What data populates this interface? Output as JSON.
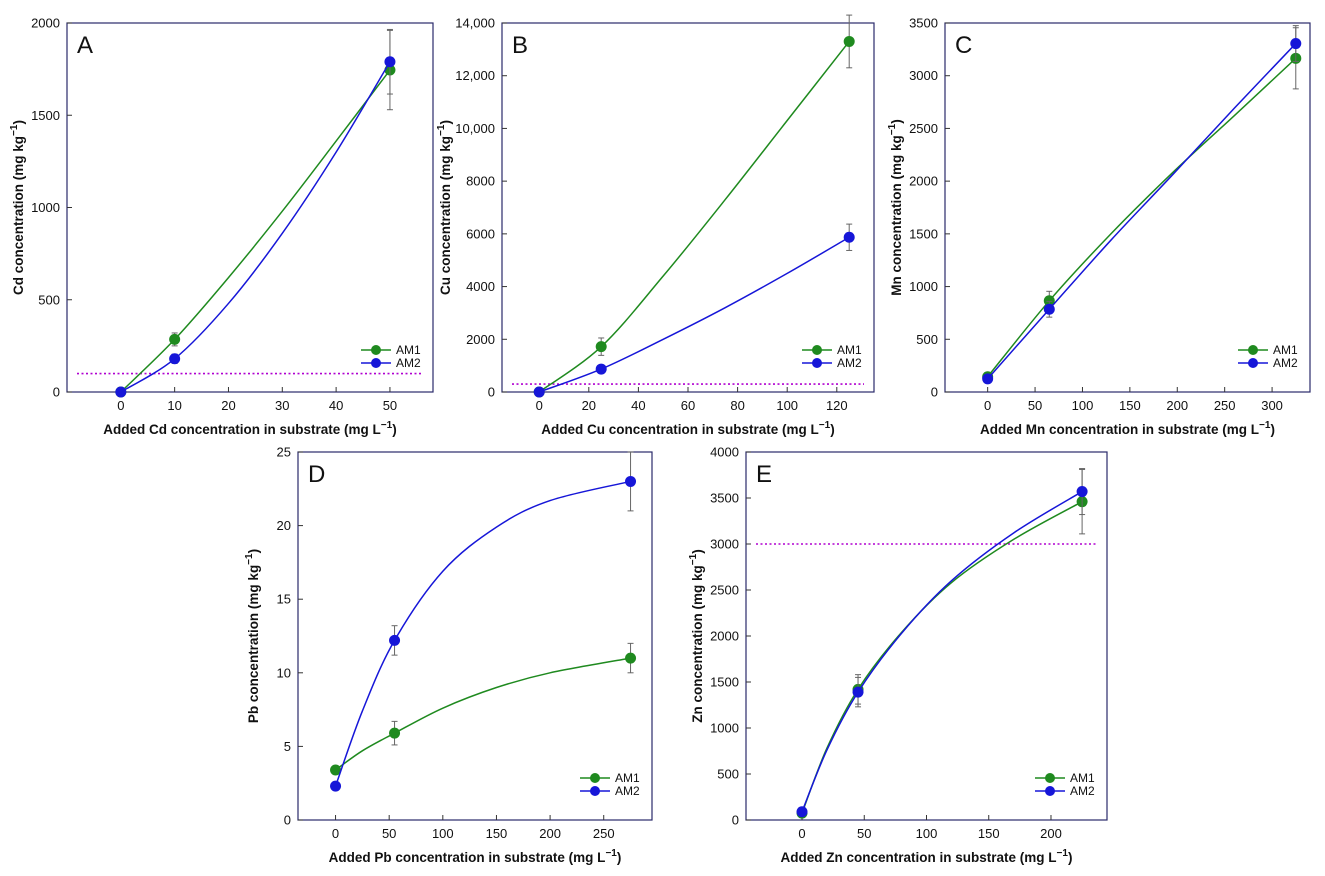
{
  "figure": {
    "description_free": true
  },
  "chart_data": [
    {
      "type": "line",
      "panel": "A",
      "xlabel": "Added Cd concentration in substrate (mg L",
      "xlabel_sup": "−1",
      "xlabel_end": ")",
      "ylabel": "Cd concentration (mg kg",
      "ylabel_sup": "−1",
      "ylabel_end": ")",
      "xlim": [
        -10,
        58
      ],
      "ylim": [
        0,
        2000
      ],
      "xticks": [
        0,
        10,
        20,
        30,
        40,
        50
      ],
      "yticks": [
        0,
        500,
        1000,
        1500,
        2000
      ],
      "ytick_labels": [
        "0",
        "500",
        "1000",
        "1500",
        "2000"
      ],
      "threshold": 100,
      "series": [
        {
          "name": "AM1",
          "color": "#1f8a1f",
          "x": [
            0,
            10,
            50
          ],
          "y": [
            0,
            285,
            1745
          ],
          "err": [
            0,
            35,
            215
          ],
          "curve": [
            [
              0,
              0
            ],
            [
              10,
              285
            ],
            [
              20,
              620
            ],
            [
              30,
              980
            ],
            [
              40,
              1360
            ],
            [
              50,
              1745
            ]
          ]
        },
        {
          "name": "AM2",
          "color": "#1616d8",
          "x": [
            0,
            10,
            50
          ],
          "y": [
            0,
            180,
            1790
          ],
          "err": [
            0,
            25,
            175
          ],
          "curve": [
            [
              0,
              0
            ],
            [
              10,
              180
            ],
            [
              20,
              480
            ],
            [
              30,
              860
            ],
            [
              40,
              1300
            ],
            [
              50,
              1790
            ]
          ]
        }
      ]
    },
    {
      "type": "line",
      "panel": "B",
      "xlabel": "Added Cu concentration in substrate (mg L",
      "xlabel_sup": "−1",
      "xlabel_end": ")",
      "ylabel": "Cu concentration (mg kg",
      "ylabel_sup": "−1",
      "ylabel_end": ")",
      "xlim": [
        -15,
        135
      ],
      "ylim": [
        0,
        14000
      ],
      "xticks": [
        0,
        20,
        40,
        60,
        80,
        100,
        120
      ],
      "yticks": [
        0,
        2000,
        4000,
        6000,
        8000,
        10000,
        12000,
        14000
      ],
      "ytick_labels": [
        "0",
        "2000",
        "4000",
        "6000",
        "8000",
        "10,000",
        "12,000",
        "14,000"
      ],
      "threshold": 300,
      "series": [
        {
          "name": "AM1",
          "color": "#1f8a1f",
          "x": [
            0,
            25,
            125
          ],
          "y": [
            0,
            1720,
            13300
          ],
          "err": [
            0,
            330,
            1000
          ],
          "curve": [
            [
              0,
              0
            ],
            [
              25,
              1720
            ],
            [
              50,
              4400
            ],
            [
              75,
              7300
            ],
            [
              100,
              10300
            ],
            [
              125,
              13300
            ]
          ]
        },
        {
          "name": "AM2",
          "color": "#1616d8",
          "x": [
            0,
            25,
            125
          ],
          "y": [
            0,
            870,
            5870
          ],
          "err": [
            0,
            80,
            500
          ],
          "curve": [
            [
              0,
              0
            ],
            [
              25,
              870
            ],
            [
              50,
              2000
            ],
            [
              75,
              3200
            ],
            [
              100,
              4500
            ],
            [
              125,
              5870
            ]
          ]
        }
      ]
    },
    {
      "type": "line",
      "panel": "C",
      "xlabel": "Added Mn concentration in substrate (mg L",
      "xlabel_sup": "−1",
      "xlabel_end": ")",
      "ylabel": "Mn concentration (mg kg",
      "ylabel_sup": "−1",
      "ylabel_end": ")",
      "xlim": [
        -45,
        340
      ],
      "ylim": [
        0,
        3500
      ],
      "xticks": [
        0,
        50,
        100,
        150,
        200,
        250,
        300
      ],
      "yticks": [
        0,
        500,
        1000,
        1500,
        2000,
        2500,
        3000,
        3500
      ],
      "ytick_labels": [
        "0",
        "500",
        "1000",
        "1500",
        "2000",
        "2500",
        "3000",
        "3500"
      ],
      "threshold": null,
      "series": [
        {
          "name": "AM1",
          "color": "#1f8a1f",
          "x": [
            0,
            65,
            325
          ],
          "y": [
            145,
            865,
            3165
          ],
          "err": [
            20,
            90,
            290
          ],
          "curve": [
            [
              0,
              145
            ],
            [
              65,
              865
            ],
            [
              130,
              1500
            ],
            [
              195,
              2080
            ],
            [
              260,
              2620
            ],
            [
              325,
              3165
            ]
          ]
        },
        {
          "name": "AM2",
          "color": "#1616d8",
          "x": [
            0,
            65,
            325
          ],
          "y": [
            125,
            785,
            3305
          ],
          "err": [
            15,
            75,
            170
          ],
          "curve": [
            [
              0,
              125
            ],
            [
              65,
              785
            ],
            [
              130,
              1440
            ],
            [
              195,
              2060
            ],
            [
              260,
              2690
            ],
            [
              325,
              3305
            ]
          ]
        }
      ]
    },
    {
      "type": "line",
      "panel": "D",
      "xlabel": "Added Pb concentration in substrate (mg L",
      "xlabel_sup": "−1",
      "xlabel_end": ")",
      "ylabel": "Pb concentration (mg kg",
      "ylabel_sup": "−1",
      "ylabel_end": ")",
      "xlim": [
        -35,
        295
      ],
      "ylim": [
        0,
        25
      ],
      "xticks": [
        0,
        50,
        100,
        150,
        200,
        250
      ],
      "yticks": [
        0,
        5,
        10,
        15,
        20,
        25
      ],
      "ytick_labels": [
        "0",
        "5",
        "10",
        "15",
        "20",
        "25"
      ],
      "threshold": null,
      "series": [
        {
          "name": "AM1",
          "color": "#1f8a1f",
          "x": [
            0,
            55,
            275
          ],
          "y": [
            3.4,
            5.9,
            11.0
          ],
          "err": [
            0.2,
            0.8,
            1.0
          ],
          "curve": [
            [
              0,
              3.4
            ],
            [
              25,
              4.7
            ],
            [
              55,
              5.9
            ],
            [
              100,
              7.6
            ],
            [
              150,
              9.0
            ],
            [
              200,
              10.0
            ],
            [
              275,
              11.0
            ]
          ]
        },
        {
          "name": "AM2",
          "color": "#1616d8",
          "x": [
            0,
            55,
            275
          ],
          "y": [
            2.3,
            12.2,
            23.0
          ],
          "err": [
            0.1,
            1.0,
            2.0
          ],
          "curve": [
            [
              0,
              2.3
            ],
            [
              25,
              7.4
            ],
            [
              55,
              12.2
            ],
            [
              100,
              16.9
            ],
            [
              150,
              19.9
            ],
            [
              200,
              21.7
            ],
            [
              275,
              23.0
            ]
          ]
        }
      ]
    },
    {
      "type": "line",
      "panel": "E",
      "xlabel": "Added Zn concentration in substrate (mg L",
      "xlabel_sup": "−1",
      "xlabel_end": ")",
      "ylabel": "Zn concentration (mg kg",
      "ylabel_sup": "−1",
      "ylabel_end": ")",
      "xlim": [
        -45,
        245
      ],
      "ylim": [
        0,
        4000
      ],
      "xticks": [
        0,
        50,
        100,
        150,
        200
      ],
      "yticks": [
        0,
        500,
        1000,
        1500,
        2000,
        2500,
        3000,
        3500,
        4000
      ],
      "ytick_labels": [
        "0",
        "500",
        "1000",
        "1500",
        "2000",
        "2500",
        "3000",
        "3500",
        "4000"
      ],
      "threshold": 3000,
      "series": [
        {
          "name": "AM1",
          "color": "#1f8a1f",
          "x": [
            0,
            45,
            225
          ],
          "y": [
            75,
            1420,
            3460
          ],
          "err": [
            15,
            160,
            350
          ],
          "curve": [
            [
              0,
              75
            ],
            [
              20,
              780
            ],
            [
              45,
              1420
            ],
            [
              80,
              2040
            ],
            [
              120,
              2580
            ],
            [
              170,
              3050
            ],
            [
              225,
              3460
            ]
          ]
        },
        {
          "name": "AM2",
          "color": "#1616d8",
          "x": [
            0,
            45,
            225
          ],
          "y": [
            90,
            1390,
            3570
          ],
          "err": [
            15,
            160,
            250
          ],
          "curve": [
            [
              0,
              90
            ],
            [
              20,
              760
            ],
            [
              45,
              1390
            ],
            [
              80,
              2030
            ],
            [
              120,
              2600
            ],
            [
              170,
              3120
            ],
            [
              225,
              3570
            ]
          ]
        }
      ]
    }
  ]
}
